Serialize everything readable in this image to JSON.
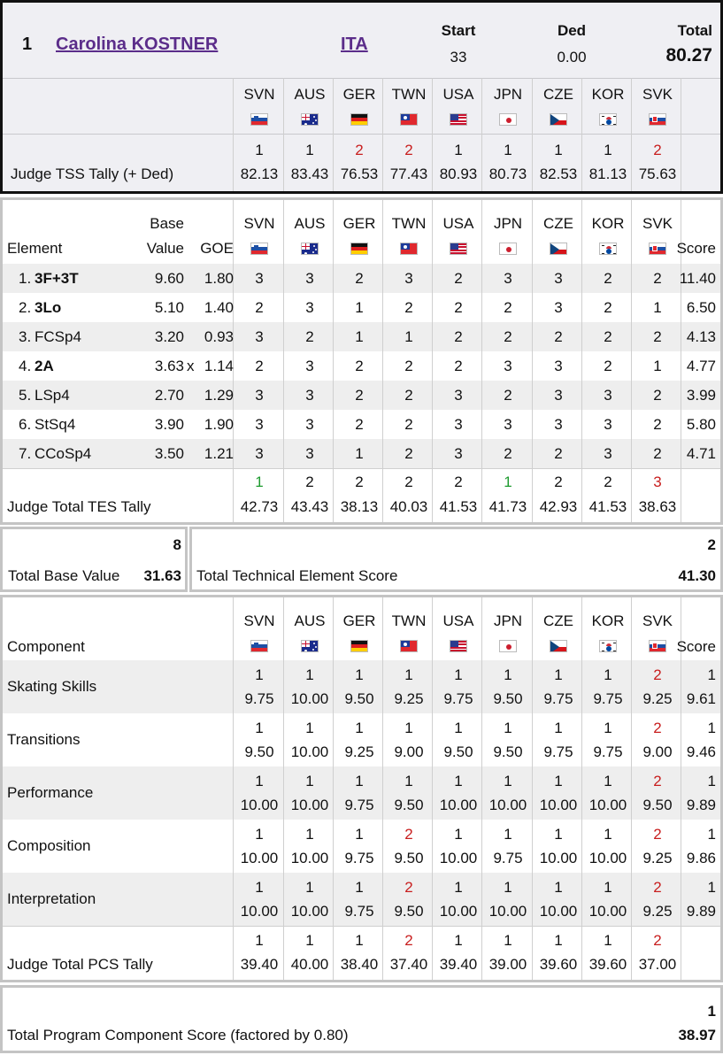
{
  "header": {
    "rank": "1",
    "skater": "Carolina KOSTNER",
    "nation": "ITA",
    "start_label": "Start",
    "start_value": "33",
    "ded_label": "Ded",
    "ded_value": "0.00",
    "total_label": "Total",
    "total_value": "80.27"
  },
  "judges": [
    {
      "code": "SVN",
      "flag": "svn-flag-icon"
    },
    {
      "code": "AUS",
      "flag": "aus-flag-icon"
    },
    {
      "code": "GER",
      "flag": "ger-flag-icon"
    },
    {
      "code": "TWN",
      "flag": "twn-flag-icon"
    },
    {
      "code": "USA",
      "flag": "usa-flag-icon"
    },
    {
      "code": "JPN",
      "flag": "jpn-flag-icon"
    },
    {
      "code": "CZE",
      "flag": "cze-flag-icon"
    },
    {
      "code": "KOR",
      "flag": "kor-flag-icon"
    },
    {
      "code": "SVK",
      "flag": "svk-flag-icon"
    }
  ],
  "tss_tally": {
    "label": "Judge TSS Tally (+ Ded)",
    "ranks": [
      "1",
      "1",
      "2",
      "2",
      "1",
      "1",
      "1",
      "1",
      "2"
    ],
    "scores": [
      "82.13",
      "83.43",
      "76.53",
      "77.43",
      "80.93",
      "80.73",
      "82.53",
      "81.13",
      "75.63"
    ]
  },
  "elements_table": {
    "element_header": "Element",
    "base_header_1": "Base",
    "base_header_2": "Value",
    "goe_header": "GOE",
    "score_header": "Score",
    "rows": [
      {
        "num": "1.",
        "name": "3F+3T",
        "bold": true,
        "base": "9.60",
        "bonus": "",
        "goe": "1.80",
        "marks": [
          "3",
          "3",
          "2",
          "3",
          "2",
          "3",
          "3",
          "2",
          "2"
        ],
        "score": "11.40"
      },
      {
        "num": "2.",
        "name": "3Lo",
        "bold": true,
        "base": "5.10",
        "bonus": "",
        "goe": "1.40",
        "marks": [
          "2",
          "3",
          "1",
          "2",
          "2",
          "2",
          "3",
          "2",
          "1"
        ],
        "score": "6.50"
      },
      {
        "num": "3.",
        "name": "FCSp4",
        "bold": false,
        "base": "3.20",
        "bonus": "",
        "goe": "0.93",
        "marks": [
          "3",
          "2",
          "1",
          "1",
          "2",
          "2",
          "2",
          "2",
          "2"
        ],
        "score": "4.13"
      },
      {
        "num": "4.",
        "name": "2A",
        "bold": true,
        "base": "3.63",
        "bonus": "x",
        "goe": "1.14",
        "marks": [
          "2",
          "3",
          "2",
          "2",
          "2",
          "3",
          "3",
          "2",
          "1"
        ],
        "score": "4.77"
      },
      {
        "num": "5.",
        "name": "LSp4",
        "bold": false,
        "base": "2.70",
        "bonus": "",
        "goe": "1.29",
        "marks": [
          "3",
          "3",
          "2",
          "2",
          "3",
          "2",
          "3",
          "3",
          "2"
        ],
        "score": "3.99"
      },
      {
        "num": "6.",
        "name": "StSq4",
        "bold": false,
        "base": "3.90",
        "bonus": "",
        "goe": "1.90",
        "marks": [
          "3",
          "3",
          "2",
          "2",
          "3",
          "3",
          "3",
          "3",
          "2"
        ],
        "score": "5.80"
      },
      {
        "num": "7.",
        "name": "CCoSp4",
        "bold": false,
        "base": "3.50",
        "bonus": "",
        "goe": "1.21",
        "marks": [
          "3",
          "3",
          "1",
          "2",
          "3",
          "2",
          "2",
          "3",
          "2"
        ],
        "score": "4.71"
      }
    ],
    "tes_tally": {
      "label": "Judge Total TES Tally",
      "ranks": [
        "1",
        "2",
        "2",
        "2",
        "2",
        "1",
        "2",
        "2",
        "3"
      ],
      "scores": [
        "42.73",
        "43.43",
        "38.13",
        "40.03",
        "41.53",
        "41.73",
        "42.93",
        "41.53",
        "38.63"
      ]
    }
  },
  "totals_mid": {
    "base_rank": "8",
    "base_label": "Total Base Value",
    "base_value": "31.63",
    "tes_rank": "2",
    "tes_label": "Total Technical Element Score",
    "tes_value": "41.30"
  },
  "components_table": {
    "component_header": "Component",
    "score_header": "Score",
    "rows": [
      {
        "name": "Skating Skills",
        "ranks": [
          "1",
          "1",
          "1",
          "1",
          "1",
          "1",
          "1",
          "1",
          "2"
        ],
        "marks": [
          "9.75",
          "10.00",
          "9.50",
          "9.25",
          "9.75",
          "9.50",
          "9.75",
          "9.75",
          "9.25"
        ],
        "score_rank": "1",
        "score": "9.61"
      },
      {
        "name": "Transitions",
        "ranks": [
          "1",
          "1",
          "1",
          "1",
          "1",
          "1",
          "1",
          "1",
          "2"
        ],
        "marks": [
          "9.50",
          "10.00",
          "9.25",
          "9.00",
          "9.50",
          "9.50",
          "9.75",
          "9.75",
          "9.00"
        ],
        "score_rank": "1",
        "score": "9.46"
      },
      {
        "name": "Performance",
        "ranks": [
          "1",
          "1",
          "1",
          "1",
          "1",
          "1",
          "1",
          "1",
          "2"
        ],
        "marks": [
          "10.00",
          "10.00",
          "9.75",
          "9.50",
          "10.00",
          "10.00",
          "10.00",
          "10.00",
          "9.50"
        ],
        "score_rank": "1",
        "score": "9.89"
      },
      {
        "name": "Composition",
        "ranks": [
          "1",
          "1",
          "1",
          "2",
          "1",
          "1",
          "1",
          "1",
          "2"
        ],
        "marks": [
          "10.00",
          "10.00",
          "9.75",
          "9.50",
          "10.00",
          "9.75",
          "10.00",
          "10.00",
          "9.25"
        ],
        "score_rank": "1",
        "score": "9.86"
      },
      {
        "name": "Interpretation",
        "ranks": [
          "1",
          "1",
          "1",
          "2",
          "1",
          "1",
          "1",
          "1",
          "2"
        ],
        "marks": [
          "10.00",
          "10.00",
          "9.75",
          "9.50",
          "10.00",
          "10.00",
          "10.00",
          "10.00",
          "9.25"
        ],
        "score_rank": "1",
        "score": "9.89"
      }
    ],
    "pcs_tally": {
      "label": "Judge Total PCS Tally",
      "ranks": [
        "1",
        "1",
        "1",
        "2",
        "1",
        "1",
        "1",
        "1",
        "2"
      ],
      "scores": [
        "39.40",
        "40.00",
        "38.40",
        "37.40",
        "39.40",
        "39.00",
        "39.60",
        "39.60",
        "37.00"
      ]
    }
  },
  "totals_bottom": {
    "pcs_rank": "1",
    "pcs_label": "Total Program Component Score (factored by 0.80)",
    "pcs_value": "38.97"
  },
  "colors": {
    "accent_red": "#c81e1e",
    "accent_green": "#1e9b2f",
    "link_purple": "#5b2d8a",
    "row_shade": "#eeeeee",
    "header_bg": "#efeff3"
  }
}
